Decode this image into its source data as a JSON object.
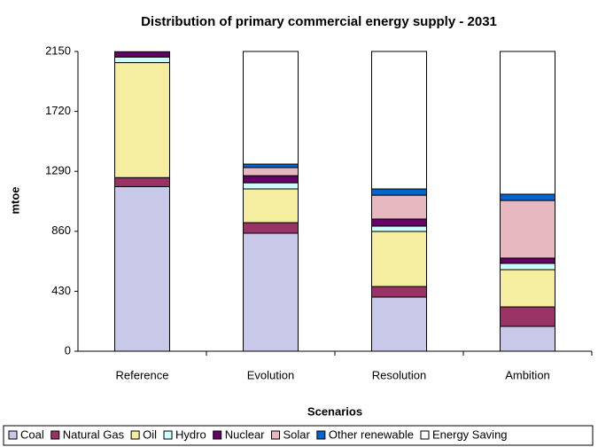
{
  "chart_data": {
    "type": "stacked_bar",
    "title": "Distribution of primary commercial energy supply - 2031",
    "y_label": "mtoe",
    "x_label": "Scenarios",
    "categories": [
      "Reference",
      "Evolution",
      "Resolution",
      "Ambition"
    ],
    "series": [
      {
        "name": "Coal",
        "color": "#c8c8e8",
        "values": [
          1180,
          846,
          388,
          178
        ]
      },
      {
        "name": "Natural Gas",
        "color": "#993366",
        "values": [
          65,
          76,
          76,
          140
        ]
      },
      {
        "name": "Oil",
        "color": "#f5ed9f",
        "values": [
          825,
          242,
          395,
          267
        ]
      },
      {
        "name": "Hydro",
        "color": "#ccffff",
        "values": [
          40,
          44,
          38,
          45
        ]
      },
      {
        "name": "Nuclear",
        "color": "#660066",
        "values": [
          38,
          51,
          51,
          38
        ]
      },
      {
        "name": "Solar",
        "color": "#e8b8c0",
        "values": [
          0,
          58,
          171,
          413
        ]
      },
      {
        "name": "Other renewable",
        "color": "#0066cc",
        "values": [
          0,
          25,
          45,
          45
        ]
      },
      {
        "name": "Energy Saving",
        "color": "#ffffff",
        "values": [
          0,
          808,
          986,
          1024
        ]
      }
    ],
    "ylim": [
      0,
      2150
    ],
    "yticks": [
      0,
      430,
      860,
      1290,
      1720,
      2150
    ],
    "grid": false,
    "legend": "bottom"
  }
}
